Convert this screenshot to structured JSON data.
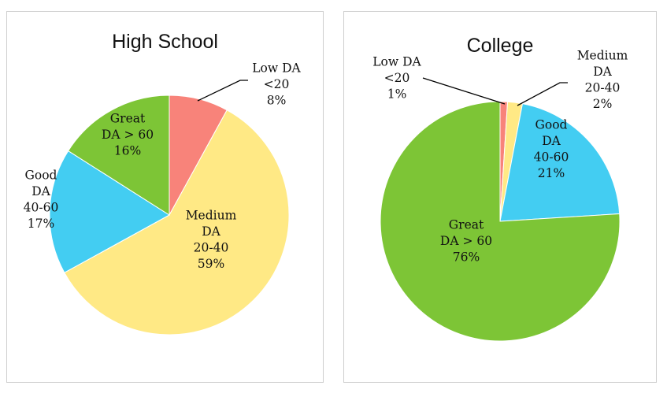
{
  "chart_data": [
    {
      "type": "pie",
      "title": "High School",
      "slices": [
        {
          "label": [
            "Low DA",
            "<20",
            "8%"
          ],
          "value": 8,
          "color": "#F8837A"
        },
        {
          "label": [
            "Medium",
            "DA",
            "20-40",
            "59%"
          ],
          "value": 59,
          "color": "#FFE985"
        },
        {
          "label": [
            "Good",
            "DA",
            "40-60",
            "17%"
          ],
          "value": 17,
          "color": "#43CDF2"
        },
        {
          "label": [
            "Great",
            "DA > 60",
            "16%"
          ],
          "value": 16,
          "color": "#7DC536"
        }
      ]
    },
    {
      "type": "pie",
      "title": "College",
      "slices": [
        {
          "label": [
            "Low DA",
            "<20",
            "1%"
          ],
          "value": 1,
          "color": "#F8837A"
        },
        {
          "label": [
            "Medium",
            "DA",
            "20-40",
            "2%"
          ],
          "value": 2,
          "color": "#FFE985"
        },
        {
          "label": [
            "Good",
            "DA",
            "40-60",
            "21%"
          ],
          "value": 21,
          "color": "#43CDF2"
        },
        {
          "label": [
            "Great",
            "DA > 60",
            "76%"
          ],
          "value": 76,
          "color": "#7DC536"
        }
      ]
    }
  ]
}
